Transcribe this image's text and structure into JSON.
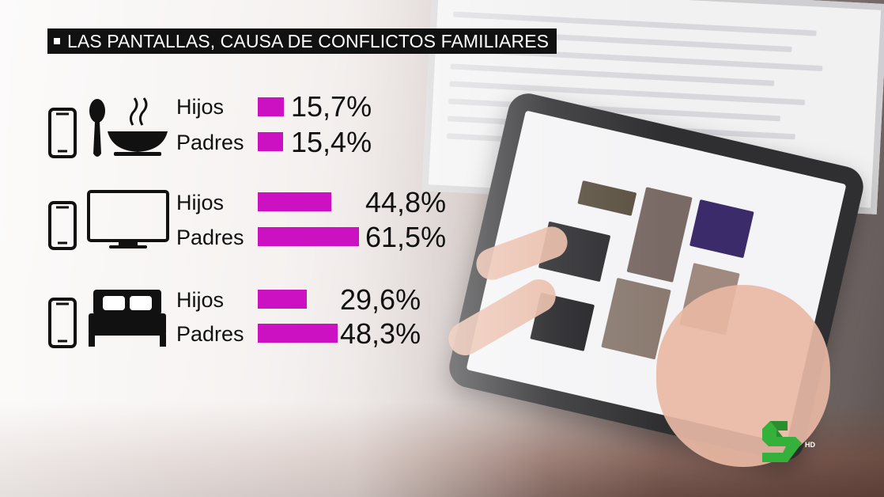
{
  "title": "LAS PANTALLAS, CAUSA DE CONFLICTOS FAMILIARES",
  "logo": {
    "badge": "HD"
  },
  "accent_color": "#cc11c2",
  "groups": [
    {
      "icon": "smartphone-meal-icon",
      "rows": [
        {
          "label": "Hijos",
          "value_text": "15,7%"
        },
        {
          "label": "Padres",
          "value_text": "15,4%"
        }
      ]
    },
    {
      "icon": "smartphone-tv-icon",
      "rows": [
        {
          "label": "Hijos",
          "value_text": "44,8%"
        },
        {
          "label": "Padres",
          "value_text": "61,5%"
        }
      ]
    },
    {
      "icon": "smartphone-bed-icon",
      "rows": [
        {
          "label": "Hijos",
          "value_text": "29,6%"
        },
        {
          "label": "Padres",
          "value_text": "48,3%"
        }
      ]
    }
  ],
  "chart_data": {
    "type": "bar",
    "title": "LAS PANTALLAS, CAUSA DE CONFLICTOS FAMILIARES",
    "orientation": "horizontal",
    "categories": [
      "Hijos",
      "Padres"
    ],
    "series": [
      {
        "values": [
          15.7,
          15.4
        ]
      },
      {
        "values": [
          44.8,
          61.5
        ]
      },
      {
        "values": [
          29.6,
          48.3
        ]
      }
    ],
    "unit": "%",
    "grid": false
  }
}
